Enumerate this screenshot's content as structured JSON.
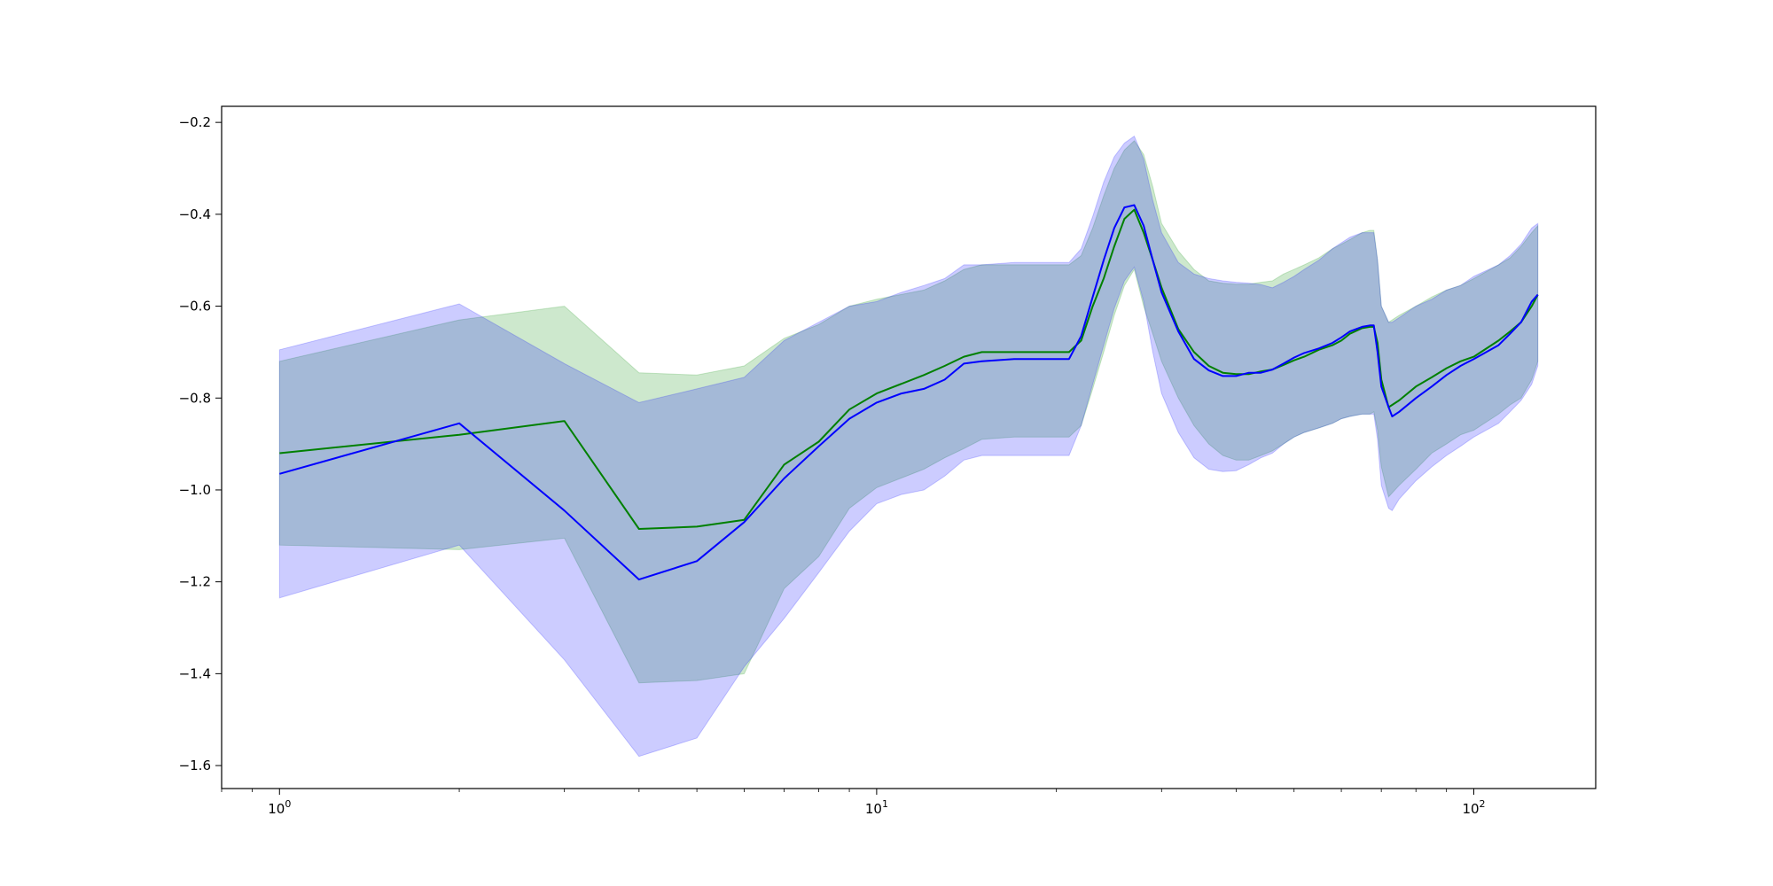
{
  "chart_data": {
    "type": "line",
    "title": "",
    "xlabel": "",
    "ylabel": "",
    "xscale": "log",
    "xlim": [
      0.8,
      160
    ],
    "ylim": [
      -1.65,
      -0.165
    ],
    "grid": false,
    "legend": "none",
    "y_ticks": [
      -0.2,
      -0.4,
      -0.6,
      -0.8,
      -1.0,
      -1.2,
      -1.4,
      -1.6
    ],
    "y_tick_labels": [
      "−0.2",
      "−0.4",
      "−0.6",
      "−0.8",
      "−1.0",
      "−1.2",
      "−1.4",
      "−1.6"
    ],
    "x_ticks": [
      {
        "value": 1,
        "base": "10",
        "exp": "0"
      },
      {
        "value": 10,
        "base": "10",
        "exp": "1"
      },
      {
        "value": 100,
        "base": "10",
        "exp": "2"
      }
    ],
    "x_minor_ticks": [
      0.8,
      0.9,
      2,
      3,
      4,
      5,
      6,
      7,
      8,
      9,
      20,
      30,
      40,
      50,
      60,
      70,
      80,
      90
    ],
    "series": [
      {
        "color": "#008000",
        "band_color": "#2ca02c",
        "band_opacity": 0.24,
        "x": [
          1,
          2,
          3,
          4,
          5,
          6,
          7,
          8,
          9,
          10,
          12,
          13,
          14,
          15,
          17,
          21,
          22,
          23,
          24,
          25,
          26,
          27,
          28,
          29,
          30,
          32,
          34,
          36,
          38,
          40,
          42,
          44,
          46,
          48,
          50,
          52,
          55,
          58,
          60,
          62,
          65,
          67,
          68,
          69,
          70,
          72,
          75,
          80,
          85,
          90,
          95,
          100,
          110,
          115,
          120,
          125,
          128
        ],
        "mean": [
          -0.92,
          -0.88,
          -0.85,
          -1.085,
          -1.08,
          -1.065,
          -0.945,
          -0.895,
          -0.825,
          -0.79,
          -0.75,
          -0.73,
          -0.71,
          -0.7,
          -0.7,
          -0.7,
          -0.675,
          -0.6,
          -0.54,
          -0.47,
          -0.41,
          -0.39,
          -0.44,
          -0.5,
          -0.56,
          -0.65,
          -0.7,
          -0.73,
          -0.745,
          -0.748,
          -0.748,
          -0.742,
          -0.738,
          -0.728,
          -0.718,
          -0.71,
          -0.695,
          -0.685,
          -0.675,
          -0.66,
          -0.648,
          -0.645,
          -0.645,
          -0.68,
          -0.76,
          -0.82,
          -0.805,
          -0.775,
          -0.755,
          -0.735,
          -0.72,
          -0.71,
          -0.675,
          -0.655,
          -0.635,
          -0.6,
          -0.575
        ],
        "upper": [
          -0.72,
          -0.63,
          -0.6,
          -0.745,
          -0.75,
          -0.73,
          -0.67,
          -0.64,
          -0.6,
          -0.585,
          -0.565,
          -0.545,
          -0.52,
          -0.51,
          -0.51,
          -0.51,
          -0.49,
          -0.43,
          -0.36,
          -0.3,
          -0.26,
          -0.24,
          -0.27,
          -0.34,
          -0.42,
          -0.48,
          -0.52,
          -0.545,
          -0.55,
          -0.552,
          -0.552,
          -0.548,
          -0.545,
          -0.53,
          -0.52,
          -0.51,
          -0.495,
          -0.475,
          -0.465,
          -0.455,
          -0.44,
          -0.435,
          -0.435,
          -0.5,
          -0.6,
          -0.635,
          -0.62,
          -0.6,
          -0.58,
          -0.565,
          -0.555,
          -0.54,
          -0.51,
          -0.495,
          -0.47,
          -0.44,
          -0.425
        ],
        "lower": [
          -1.12,
          -1.13,
          -1.105,
          -1.42,
          -1.415,
          -1.4,
          -1.215,
          -1.145,
          -1.04,
          -0.995,
          -0.955,
          -0.93,
          -0.91,
          -0.89,
          -0.885,
          -0.885,
          -0.86,
          -0.78,
          -0.7,
          -0.62,
          -0.555,
          -0.52,
          -0.6,
          -0.66,
          -0.72,
          -0.8,
          -0.86,
          -0.9,
          -0.925,
          -0.935,
          -0.935,
          -0.925,
          -0.915,
          -0.9,
          -0.885,
          -0.875,
          -0.865,
          -0.855,
          -0.845,
          -0.84,
          -0.835,
          -0.835,
          -0.83,
          -0.87,
          -0.95,
          -1.015,
          -0.99,
          -0.955,
          -0.92,
          -0.9,
          -0.88,
          -0.87,
          -0.835,
          -0.815,
          -0.8,
          -0.76,
          -0.72
        ]
      },
      {
        "color": "#0000ff",
        "band_color": "#0000ff",
        "band_opacity": 0.2,
        "x": [
          1,
          2,
          3,
          4,
          5,
          6,
          7,
          8,
          9,
          10,
          11,
          12,
          13,
          14,
          15,
          17,
          21,
          22,
          23,
          24,
          25,
          26,
          27,
          28,
          29,
          30,
          32,
          34,
          36,
          38,
          40,
          42,
          44,
          46,
          48,
          50,
          52,
          55,
          58,
          60,
          62,
          65,
          67,
          68,
          69,
          70,
          72,
          73,
          75,
          80,
          85,
          90,
          95,
          100,
          110,
          115,
          120,
          125,
          128
        ],
        "mean": [
          -0.965,
          -0.855,
          -1.045,
          -1.195,
          -1.155,
          -1.07,
          -0.975,
          -0.905,
          -0.845,
          -0.81,
          -0.79,
          -0.78,
          -0.76,
          -0.725,
          -0.72,
          -0.715,
          -0.715,
          -0.665,
          -0.58,
          -0.5,
          -0.43,
          -0.385,
          -0.38,
          -0.425,
          -0.5,
          -0.57,
          -0.655,
          -0.715,
          -0.74,
          -0.752,
          -0.752,
          -0.745,
          -0.745,
          -0.738,
          -0.725,
          -0.712,
          -0.702,
          -0.692,
          -0.68,
          -0.668,
          -0.655,
          -0.645,
          -0.642,
          -0.642,
          -0.7,
          -0.775,
          -0.82,
          -0.84,
          -0.83,
          -0.8,
          -0.775,
          -0.75,
          -0.73,
          -0.715,
          -0.685,
          -0.66,
          -0.635,
          -0.59,
          -0.575
        ],
        "upper": [
          -0.695,
          -0.595,
          -0.725,
          -0.81,
          -0.78,
          -0.755,
          -0.675,
          -0.635,
          -0.6,
          -0.59,
          -0.57,
          -0.555,
          -0.54,
          -0.51,
          -0.51,
          -0.505,
          -0.505,
          -0.475,
          -0.405,
          -0.33,
          -0.275,
          -0.245,
          -0.23,
          -0.28,
          -0.37,
          -0.44,
          -0.505,
          -0.53,
          -0.54,
          -0.545,
          -0.548,
          -0.55,
          -0.553,
          -0.56,
          -0.548,
          -0.535,
          -0.52,
          -0.5,
          -0.475,
          -0.462,
          -0.45,
          -0.44,
          -0.44,
          -0.44,
          -0.5,
          -0.6,
          -0.635,
          -0.635,
          -0.625,
          -0.6,
          -0.585,
          -0.565,
          -0.555,
          -0.535,
          -0.51,
          -0.49,
          -0.465,
          -0.43,
          -0.42
        ],
        "lower": [
          -1.235,
          -1.12,
          -1.37,
          -1.58,
          -1.54,
          -1.385,
          -1.28,
          -1.18,
          -1.09,
          -1.03,
          -1.01,
          -1.0,
          -0.97,
          -0.935,
          -0.925,
          -0.925,
          -0.925,
          -0.86,
          -0.77,
          -0.685,
          -0.605,
          -0.545,
          -0.515,
          -0.59,
          -0.7,
          -0.79,
          -0.875,
          -0.93,
          -0.955,
          -0.96,
          -0.958,
          -0.945,
          -0.93,
          -0.92,
          -0.9,
          -0.885,
          -0.875,
          -0.865,
          -0.855,
          -0.845,
          -0.84,
          -0.835,
          -0.835,
          -0.835,
          -0.89,
          -0.99,
          -1.04,
          -1.045,
          -1.02,
          -0.98,
          -0.95,
          -0.925,
          -0.905,
          -0.885,
          -0.855,
          -0.83,
          -0.805,
          -0.77,
          -0.73
        ]
      }
    ]
  }
}
